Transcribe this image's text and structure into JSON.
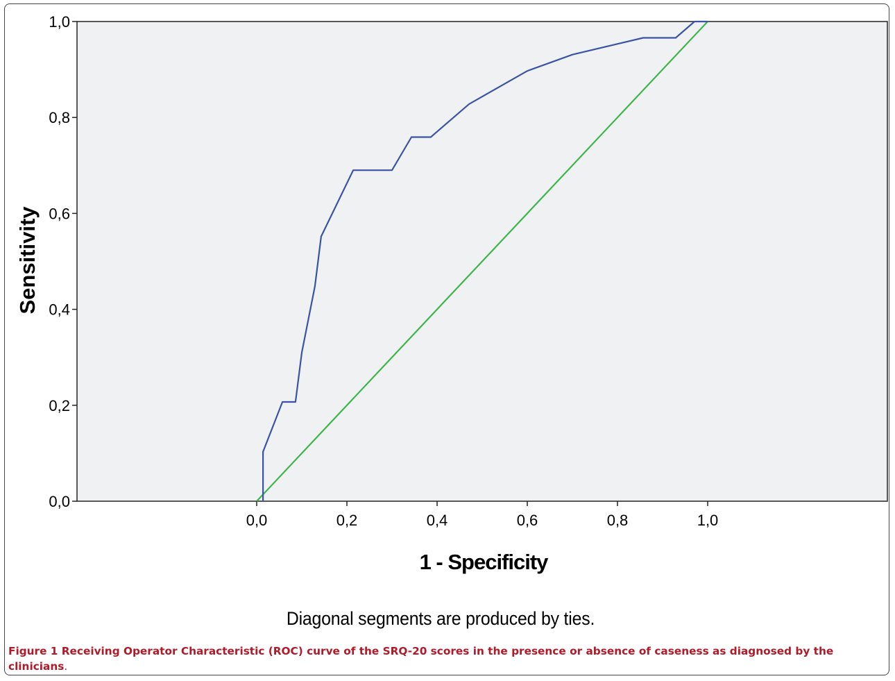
{
  "chart_data": {
    "type": "line",
    "title": "",
    "xlabel": "1 - Specificity",
    "ylabel": "Sensitivity",
    "xlim": [
      0.0,
      1.0
    ],
    "ylim": [
      0.0,
      1.0
    ],
    "x_ticks": [
      "0,0",
      "0,2",
      "0,4",
      "0,6",
      "0,8",
      "1,0"
    ],
    "y_ticks": [
      "0,0",
      "0,2",
      "0,4",
      "0,6",
      "0,8",
      "1,0"
    ],
    "grid": false,
    "legend": "none",
    "plot_background": "#eff1f3",
    "series": [
      {
        "color": "#3b53a4",
        "points": [
          [
            0.014,
            0.0
          ],
          [
            0.014,
            0.103
          ],
          [
            0.057,
            0.207
          ],
          [
            0.086,
            0.207
          ],
          [
            0.1,
            0.31
          ],
          [
            0.129,
            0.448
          ],
          [
            0.143,
            0.552
          ],
          [
            0.214,
            0.69
          ],
          [
            0.3,
            0.69
          ],
          [
            0.343,
            0.759
          ],
          [
            0.386,
            0.759
          ],
          [
            0.471,
            0.828
          ],
          [
            0.6,
            0.897
          ],
          [
            0.7,
            0.931
          ],
          [
            0.857,
            0.966
          ],
          [
            0.929,
            0.966
          ],
          [
            0.971,
            1.0
          ],
          [
            1.0,
            1.0
          ]
        ]
      },
      {
        "color": "#3db54a",
        "points": [
          [
            0.0,
            0.0
          ],
          [
            1.0,
            1.0
          ]
        ]
      }
    ],
    "footnote": "Diagonal segments are produced by ties."
  },
  "caption": {
    "label": "Figure 1",
    "text": " Receiving Operator Characteristic (ROC) curve of the SRQ-20 scores in the presence or absence of caseness as diagnosed by the clinicians",
    "end": "."
  }
}
